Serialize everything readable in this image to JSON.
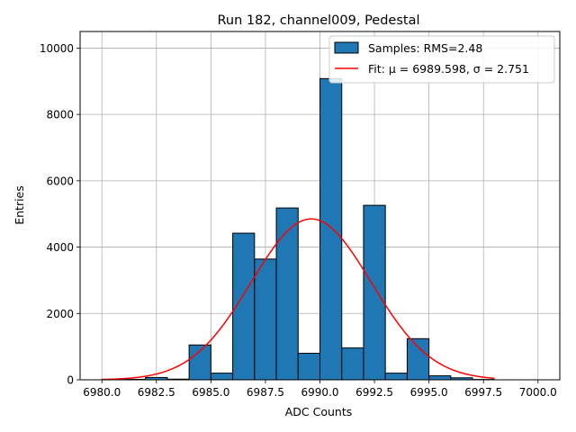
{
  "chart_data": {
    "type": "bar",
    "title": "Run 182, channel009, Pedestal",
    "xlabel": "ADC Counts",
    "ylabel": "Entries",
    "xlim": [
      6979.0,
      7001.0
    ],
    "ylim": [
      0,
      10500
    ],
    "grid": true,
    "legend_position": "top-right",
    "x_ticks": [
      6980.0,
      6982.5,
      6985.0,
      6987.5,
      6990.0,
      6992.5,
      6995.0,
      6997.5,
      7000.0
    ],
    "x_tick_labels": [
      "6980.0",
      "6982.5",
      "6985.0",
      "6987.5",
      "6990.0",
      "6992.5",
      "6995.0",
      "6997.5",
      "7000.0"
    ],
    "y_ticks": [
      0,
      2000,
      4000,
      6000,
      8000,
      10000
    ],
    "y_tick_labels": [
      "0",
      "2000",
      "4000",
      "6000",
      "8000",
      "10000"
    ],
    "histogram": {
      "name": "Samples: RMS=2.48",
      "color": "#1f77b4",
      "bin_edges": [
        6980,
        6981,
        6982,
        6983,
        6984,
        6985,
        6986,
        6987,
        6988,
        6989,
        6990,
        6991,
        6992,
        6993,
        6994,
        6995,
        6996,
        6997,
        6998
      ],
      "values": [
        5,
        15,
        70,
        20,
        1050,
        200,
        4420,
        3640,
        5180,
        800,
        9080,
        960,
        5260,
        200,
        1240,
        120,
        60,
        10
      ]
    },
    "fit": {
      "name": "Fit: μ = 6989.598, σ = 2.751",
      "color": "#ff0000",
      "mu": 6989.598,
      "sigma": 2.751,
      "amplitude": 4850,
      "x_range": [
        6980,
        6998
      ]
    }
  }
}
